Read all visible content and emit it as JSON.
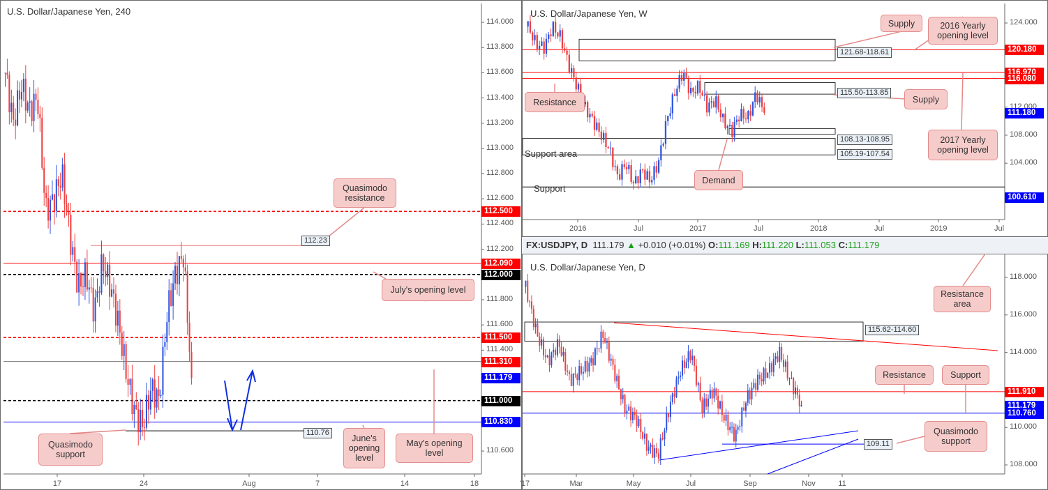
{
  "panels": {
    "h4": {
      "title": "U.S. Dollar/Japanese Yen, 240",
      "y_ticks": [
        "114.000",
        "113.800",
        "113.600",
        "113.400",
        "113.200",
        "113.000",
        "112.800",
        "112.600",
        "112.400",
        "112.200",
        "111.800",
        "111.600",
        "111.400",
        "110.600"
      ],
      "x_ticks": [
        "17",
        "24",
        "Aug",
        "7",
        "14",
        "18"
      ],
      "price_labels": [
        {
          "text": "112.500",
          "color": "#ff0000"
        },
        {
          "text": "112.090",
          "color": "#ff0000"
        },
        {
          "text": "112.000",
          "color": "#000000"
        },
        {
          "text": "111.500",
          "color": "#ff0000"
        },
        {
          "text": "111.310",
          "color": "#ff0000"
        },
        {
          "text": "111.179",
          "color": "#0000ff"
        },
        {
          "text": "111.000",
          "color": "#000000"
        },
        {
          "text": "110.830",
          "color": "#0000ff"
        }
      ],
      "annotations": [
        "Quasimodo resistance",
        "July's opening level",
        "Quasimodo support",
        "June's opening level",
        "May's opening level"
      ],
      "level_boxes": [
        "112.23",
        "110.76"
      ]
    },
    "weekly": {
      "title": "U.S. Dollar/Japanese Yen, W",
      "y_ticks": [
        "124.000",
        "112.000",
        "108.000",
        "104.000"
      ],
      "x_ticks": [
        "2016",
        "Jul",
        "2017",
        "Jul",
        "2018",
        "Jul",
        "2019",
        "Jul"
      ],
      "price_labels": [
        {
          "text": "120.180",
          "color": "#ff0000"
        },
        {
          "text": "116.970",
          "color": "#ff0000"
        },
        {
          "text": "116.080",
          "color": "#ff0000"
        },
        {
          "text": "111.180",
          "color": "#0000ff"
        },
        {
          "text": "100.610",
          "color": "#0000ff"
        }
      ],
      "annotations": [
        "Supply",
        "2016 Yearly opening level",
        "Resistance",
        "Supply",
        "2017 Yearly opening level",
        "Demand"
      ],
      "zone_boxes": [
        "121.68-118.61",
        "115.50-113.85",
        "108.13-108.95",
        "105.19-107.54"
      ],
      "texts": [
        "Support area",
        "Support"
      ]
    },
    "daily": {
      "header": {
        "symbol": "FX:USDJPY, D",
        "last": "111.179",
        "change": "+0.010 (+0.01%)",
        "o_label": "O:",
        "o": "111.169",
        "h_label": "H:",
        "h": "111.220",
        "l_label": "L:",
        "l": "111.053",
        "c_label": "C:",
        "c": "111.179"
      },
      "title": "U.S. Dollar/Japanese Yen, D",
      "y_ticks": [
        "118.000",
        "116.000",
        "114.000",
        "110.000",
        "108.000"
      ],
      "x_ticks": [
        "'17",
        "Mar",
        "May",
        "Jul",
        "Sep",
        "Nov",
        "11"
      ],
      "price_labels": [
        {
          "text": "111.910",
          "color": "#ff0000"
        },
        {
          "text": "111.179",
          "color": "#0000ff"
        },
        {
          "text": "110.760",
          "color": "#0000ff"
        }
      ],
      "annotations": [
        "Resistance area",
        "Resistance",
        "Support",
        "Quasimodo support"
      ],
      "zone_boxes": [
        "115.62-114.60",
        "109.11"
      ]
    }
  },
  "colors": {
    "up": "#2f55e0",
    "down": "#ef4040",
    "note_bg": "#f6cccb",
    "note_border": "#e48a8a"
  },
  "chart_data": [
    {
      "type": "candlestick",
      "title": "U.S. Dollar/Japanese Yen, 240",
      "ylim": [
        110.5,
        114.1
      ],
      "close_keypoints": [
        113.6,
        113.2,
        113.5,
        113.3,
        113.4,
        112.5,
        112.6,
        112.8,
        112.3,
        111.9,
        112.0,
        111.7,
        112.1,
        111.9,
        111.6,
        111.2,
        110.9,
        110.8,
        111.1,
        111.0,
        111.7,
        112.0,
        112.15,
        111.18
      ]
    },
    {
      "type": "candlestick",
      "title": "U.S. Dollar/Japanese Yen, W",
      "ylim": [
        98,
        126
      ],
      "close_keypoints": [
        123.5,
        121,
        120.5,
        123.5,
        122,
        118,
        115,
        112,
        110,
        108,
        106,
        102,
        104,
        101,
        103,
        101.5,
        104,
        110,
        114,
        117,
        114,
        115,
        112,
        113,
        110,
        108.5,
        111,
        110.5,
        114,
        111.2
      ]
    },
    {
      "type": "candlestick",
      "title": "U.S. Dollar/Japanese Yen, D",
      "ylim": [
        107.5,
        119
      ],
      "close_keypoints": [
        117.5,
        115,
        113.5,
        114.5,
        112.5,
        113,
        113.5,
        115,
        113,
        111,
        110.5,
        109,
        108.5,
        111,
        113,
        114,
        111,
        112,
        110.5,
        109.5,
        111.5,
        112.5,
        113,
        114,
        112.5,
        111.2
      ]
    }
  ]
}
